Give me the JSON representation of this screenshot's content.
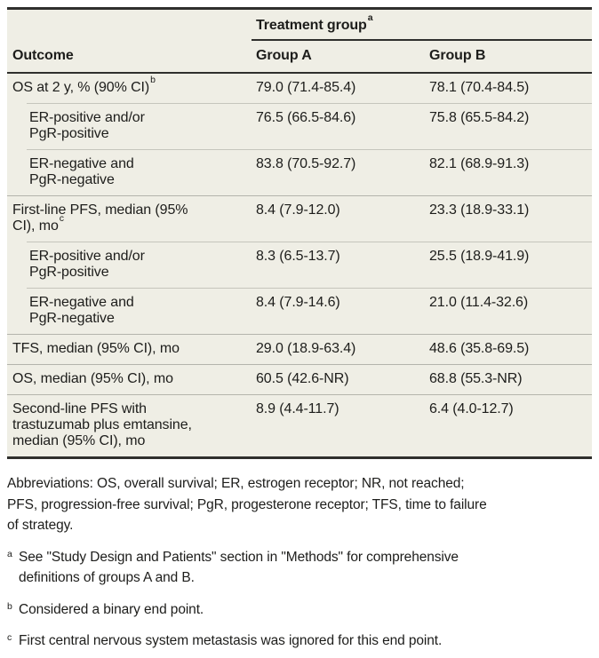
{
  "table": {
    "header": {
      "outcome": "Outcome",
      "group_label": "Treatment group",
      "group_sup": "a",
      "col_a": "Group A",
      "col_b": "Group B"
    },
    "rows": [
      {
        "lines": [
          "OS at 2 y, % (90% CI)"
        ],
        "sup": "b",
        "indent": false,
        "a": "79.0 (71.4-85.4)",
        "b": "78.1 (70.4-84.5)"
      },
      {
        "lines": [
          "ER-positive and/or",
          "PgR-positive"
        ],
        "sup": "",
        "indent": true,
        "a": "76.5 (66.5-84.6)",
        "b": "75.8 (65.5-84.2)"
      },
      {
        "lines": [
          "ER-negative and",
          "PgR-negative"
        ],
        "sup": "",
        "indent": true,
        "a": "83.8 (70.5-92.7)",
        "b": "82.1 (68.9-91.3)"
      },
      {
        "lines": [
          "First-line PFS, median (95%",
          "CI), mo"
        ],
        "sup": "c",
        "indent": false,
        "a": "8.4 (7.9-12.0)",
        "b": "23.3 (18.9-33.1)"
      },
      {
        "lines": [
          "ER-positive and/or",
          "PgR-positive"
        ],
        "sup": "",
        "indent": true,
        "a": "8.3 (6.5-13.7)",
        "b": "25.5 (18.9-41.9)"
      },
      {
        "lines": [
          "ER-negative and",
          "PgR-negative"
        ],
        "sup": "",
        "indent": true,
        "a": "8.4 (7.9-14.6)",
        "b": "21.0 (11.4-32.6)"
      },
      {
        "lines": [
          "TFS, median (95% CI), mo"
        ],
        "sup": "",
        "indent": false,
        "a": "29.0 (18.9-63.4)",
        "b": "48.6 (35.8-69.5)"
      },
      {
        "lines": [
          "OS, median (95% CI), mo"
        ],
        "sup": "",
        "indent": false,
        "a": "60.5 (42.6-NR)",
        "b": "68.8 (55.3-NR)"
      },
      {
        "lines": [
          "Second-line PFS with",
          "trastuzumab plus emtansine,",
          "median (95% CI), mo"
        ],
        "sup": "",
        "indent": false,
        "a": "8.9 (4.4-11.7)",
        "b": "6.4 (4.0-12.7)"
      }
    ]
  },
  "footnotes": {
    "abbreviations_lines": [
      "Abbreviations: OS, overall survival; ER, estrogen receptor; NR, not reached;",
      "PFS, progression-free survival; PgR, progesterone receptor; TFS, time to failure",
      "of strategy."
    ],
    "notes": [
      {
        "sup": "a",
        "lines": [
          "See \"Study Design and Patients\" section in \"Methods\" for comprehensive",
          "definitions of groups A and B."
        ]
      },
      {
        "sup": "b",
        "lines": [
          "Considered a binary end point."
        ]
      },
      {
        "sup": "c",
        "lines": [
          "First central nervous system metastasis was ignored for this end point."
        ]
      }
    ]
  },
  "colors": {
    "table_background": "#efeee5",
    "heavy_rule": "#2f2f2d",
    "row_rule": "#b4b4ac",
    "sub_row_rule": "#c5c5bc",
    "text": "#1d1d1b",
    "page_background": "#ffffff"
  }
}
